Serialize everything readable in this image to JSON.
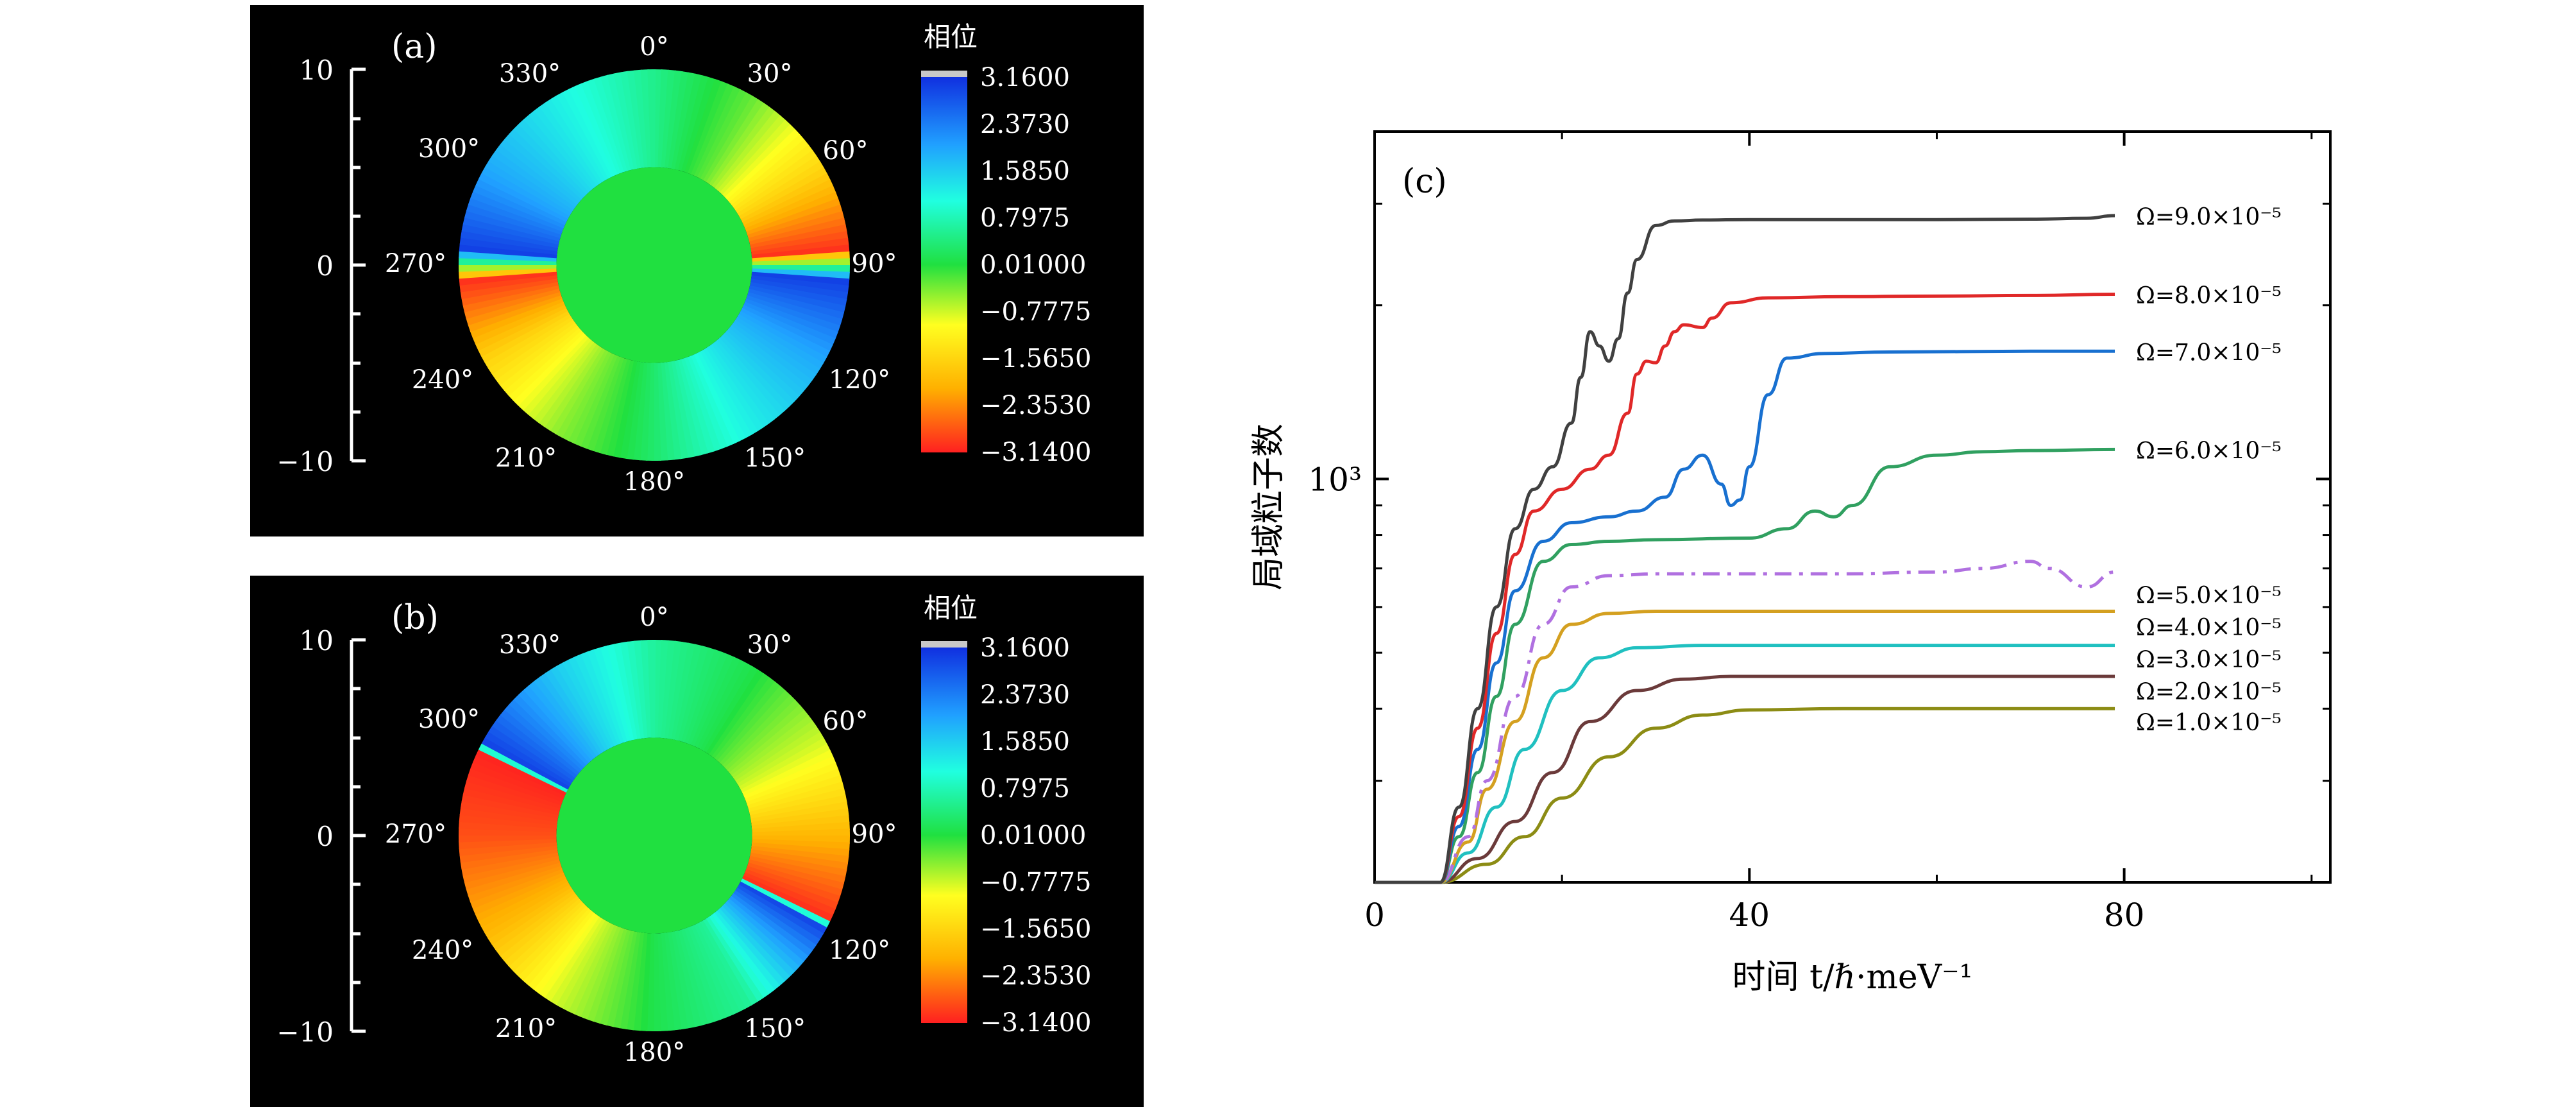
{
  "panel_a": {
    "label": "(a)",
    "colorbar_title": "相位",
    "colorbar_ticks": [
      "3.1600",
      "2.3730",
      "1.5850",
      "0.7975",
      "0.01000",
      "−0.7775",
      "−1.5650",
      "−2.3530",
      "−3.1400"
    ],
    "y_ticks": [
      "10",
      "0",
      "−10"
    ],
    "angle_labels": [
      "0°",
      "30°",
      "60°",
      "90°",
      "120°",
      "150°",
      "180°",
      "210°",
      "240°",
      "270°",
      "300°",
      "330°"
    ]
  },
  "panel_b": {
    "label": "(b)",
    "colorbar_title": "相位",
    "colorbar_ticks": [
      "3.1600",
      "2.3730",
      "1.5850",
      "0.7975",
      "0.01000",
      "−0.7775",
      "−1.5650",
      "−2.3530",
      "−3.1400"
    ],
    "y_ticks": [
      "10",
      "0",
      "−10"
    ],
    "angle_labels": [
      "0°",
      "30°",
      "60°",
      "90°",
      "120°",
      "150°",
      "180°",
      "210°",
      "240°",
      "270°",
      "300°",
      "330°"
    ]
  },
  "colors": {
    "phase_stops": [
      "#ff2020",
      "#ffb000",
      "#ffff20",
      "#20e040",
      "#20ffe0",
      "#20a0ff",
      "#1030e0"
    ],
    "series": [
      "#8c8c14",
      "#6b3a3a",
      "#20c0c0",
      "#d4a020",
      "#b070e0",
      "#30a060",
      "#1870d0",
      "#e02828",
      "#404040"
    ]
  },
  "chart_data": [
    {
      "type": "heatmap",
      "panel": "a",
      "title": "(a)",
      "description_value": "phase distribution in a ring, 2 phase windings",
      "colorbar_title": "相位",
      "colorbar_range": [
        -3.14,
        3.16
      ],
      "y_range": [
        -10,
        10
      ],
      "y_ticks": [
        10,
        0,
        -10
      ],
      "inner_radius_ratio": 0.5,
      "angular_phase_samples": {
        "angle_deg": [
          0,
          30,
          60,
          85,
          95,
          120,
          150,
          180,
          210,
          240,
          265,
          275,
          300,
          330
        ],
        "phase": [
          0.5,
          -0.3,
          -1.6,
          -3.0,
          3.0,
          2.0,
          1.2,
          0.3,
          -0.5,
          -1.6,
          -3.0,
          3.0,
          2.0,
          1.2
        ]
      },
      "inner_phase": 0.01
    },
    {
      "type": "heatmap",
      "panel": "b",
      "title": "(b)",
      "colorbar_title": "相位",
      "colorbar_range": [
        -3.14,
        3.16
      ],
      "y_range": [
        -10,
        10
      ],
      "y_ticks": [
        10,
        0,
        -10
      ],
      "inner_radius_ratio": 0.5,
      "angular_phase_samples": {
        "angle_deg": [
          0,
          30,
          60,
          90,
          115,
          118,
          150,
          180,
          210,
          240,
          270,
          295,
          298,
          330
        ],
        "phase": [
          0.6,
          0.1,
          -0.8,
          -2.0,
          -3.0,
          3.0,
          0.6,
          0.1,
          -0.8,
          -2.0,
          -2.8,
          -3.1,
          3.0,
          1.6
        ]
      },
      "inner_phase": 0.01
    },
    {
      "type": "line",
      "panel": "c",
      "title": "(c)",
      "xlabel": "时间 t/ℏ·meV⁻¹",
      "ylabel": "局域粒子数",
      "yscale": "log",
      "xlim": [
        0,
        102
      ],
      "ylim": [
        200,
        4000
      ],
      "x_ticks": [
        "0",
        "40",
        "80"
      ],
      "y_tick_label": "10³",
      "series": [
        {
          "name": "Ω=1.0×10⁻⁵",
          "style": "solid",
          "x": [
            0,
            7,
            12,
            16,
            20,
            25,
            30,
            35,
            40,
            50,
            60,
            70,
            79
          ],
          "y": [
            200,
            200,
            215,
            240,
            280,
            330,
            370,
            390,
            398,
            400,
            400,
            400,
            400
          ]
        },
        {
          "name": "Ω=2.0×10⁻⁵",
          "style": "solid",
          "x": [
            0,
            7,
            11,
            15,
            19,
            23,
            28,
            33,
            38,
            50,
            60,
            70,
            79
          ],
          "y": [
            200,
            200,
            220,
            255,
            310,
            380,
            430,
            450,
            455,
            455,
            455,
            455,
            455
          ]
        },
        {
          "name": "Ω=3.0×10⁻⁵",
          "style": "solid",
          "x": [
            0,
            7,
            10,
            13,
            16,
            20,
            24,
            28,
            35,
            50,
            60,
            70,
            79
          ],
          "y": [
            200,
            200,
            225,
            270,
            340,
            430,
            490,
            510,
            515,
            515,
            515,
            515,
            515
          ]
        },
        {
          "name": "Ω=4.0×10⁻⁵",
          "style": "solid",
          "x": [
            0,
            7,
            10,
            12,
            15,
            18,
            21,
            25,
            30,
            50,
            60,
            70,
            79
          ],
          "y": [
            200,
            200,
            235,
            290,
            380,
            490,
            560,
            585,
            590,
            590,
            590,
            590,
            590
          ]
        },
        {
          "name": "Ω=5.0×10⁻⁵",
          "style": "dashdot",
          "x": [
            0,
            7,
            10,
            12,
            15,
            18,
            21,
            25,
            30,
            50,
            60,
            65,
            70,
            72,
            76,
            79
          ],
          "y": [
            200,
            200,
            240,
            300,
            420,
            560,
            650,
            680,
            685,
            685,
            690,
            700,
            720,
            700,
            650,
            690
          ]
        },
        {
          "name": "Ω=6.0×10⁻⁵",
          "style": "solid",
          "x": [
            0,
            7,
            9,
            11,
            13,
            15,
            18,
            21,
            25,
            30,
            40,
            44,
            47,
            49,
            51,
            55,
            60,
            65,
            70,
            79
          ],
          "y": [
            200,
            200,
            240,
            310,
            420,
            560,
            720,
            770,
            780,
            785,
            790,
            820,
            880,
            860,
            900,
            1050,
            1100,
            1115,
            1120,
            1125
          ]
        },
        {
          "name": "Ω=7.0×10⁻⁵",
          "style": "solid",
          "x": [
            0,
            7,
            9,
            11,
            13,
            15,
            18,
            21,
            25,
            28,
            31,
            33,
            35,
            37,
            38,
            39,
            40,
            42,
            44,
            48,
            55,
            70,
            79
          ],
          "y": [
            200,
            200,
            250,
            340,
            480,
            640,
            780,
            840,
            860,
            880,
            930,
            1040,
            1100,
            980,
            900,
            920,
            1050,
            1400,
            1620,
            1650,
            1660,
            1665,
            1665
          ]
        },
        {
          "name": "Ω=8.0×10⁻⁵",
          "style": "solid",
          "x": [
            0,
            7,
            9,
            11,
            13,
            15,
            17,
            20,
            23,
            25,
            27,
            28,
            29,
            30,
            31,
            32,
            33,
            35,
            36,
            38,
            42,
            50,
            60,
            70,
            79
          ],
          "y": [
            200,
            200,
            260,
            370,
            540,
            740,
            880,
            960,
            1040,
            1100,
            1300,
            1520,
            1600,
            1590,
            1700,
            1800,
            1850,
            1830,
            1900,
            2020,
            2060,
            2070,
            2075,
            2080,
            2090
          ]
        },
        {
          "name": "Ω=9.0×10⁻⁵",
          "style": "solid",
          "x": [
            0,
            7,
            9,
            11,
            13,
            15,
            17,
            19,
            21,
            22,
            23,
            24,
            25,
            26,
            27,
            28,
            30,
            32,
            35,
            40,
            50,
            60,
            70,
            76,
            79
          ],
          "y": [
            200,
            200,
            270,
            400,
            600,
            820,
            960,
            1050,
            1250,
            1500,
            1800,
            1700,
            1600,
            1750,
            2100,
            2400,
            2750,
            2800,
            2810,
            2815,
            2815,
            2815,
            2820,
            2830,
            2860
          ]
        }
      ]
    }
  ]
}
